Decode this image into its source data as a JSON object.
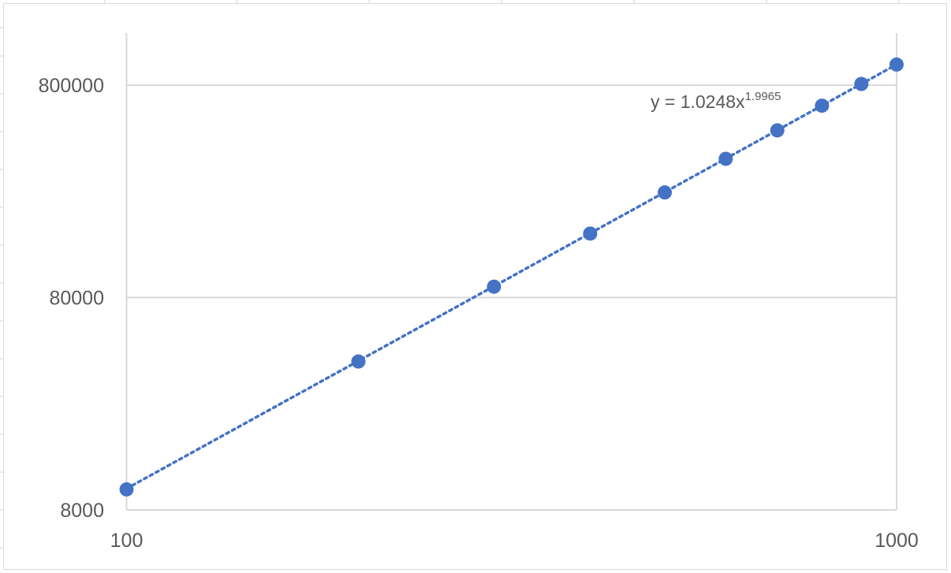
{
  "chart_data": {
    "type": "scatter",
    "x_scale": "log",
    "y_scale": "log",
    "xlim": [
      100,
      1000
    ],
    "ylim": [
      8000,
      800000
    ],
    "x_ticks": [
      {
        "value": 100,
        "label": "100"
      },
      {
        "value": 1000,
        "label": "1000"
      }
    ],
    "y_ticks": [
      {
        "value": 8000,
        "label": "8000"
      },
      {
        "value": 80000,
        "label": "80000"
      },
      {
        "value": 800000,
        "label": "800000"
      }
    ],
    "grid": true,
    "legend": "none",
    "points": [
      {
        "x": 100,
        "y": 10000
      },
      {
        "x": 200,
        "y": 40000
      },
      {
        "x": 300,
        "y": 90000
      },
      {
        "x": 400,
        "y": 160000
      },
      {
        "x": 500,
        "y": 250000
      },
      {
        "x": 600,
        "y": 360000
      },
      {
        "x": 700,
        "y": 490000
      },
      {
        "x": 800,
        "y": 640000
      },
      {
        "x": 900,
        "y": 810000
      },
      {
        "x": 1000,
        "y": 1000000
      }
    ],
    "trendline": {
      "type": "power",
      "a": 1.0248,
      "b": 1.9965,
      "style": "dotted",
      "label_base": "y = 1.0248x",
      "label_exponent": "1.9965"
    },
    "colors": {
      "marker": "#4472c4",
      "trendline": "#4472c4",
      "gridline": "#d9d9d9",
      "tick_text": "#595959"
    }
  }
}
